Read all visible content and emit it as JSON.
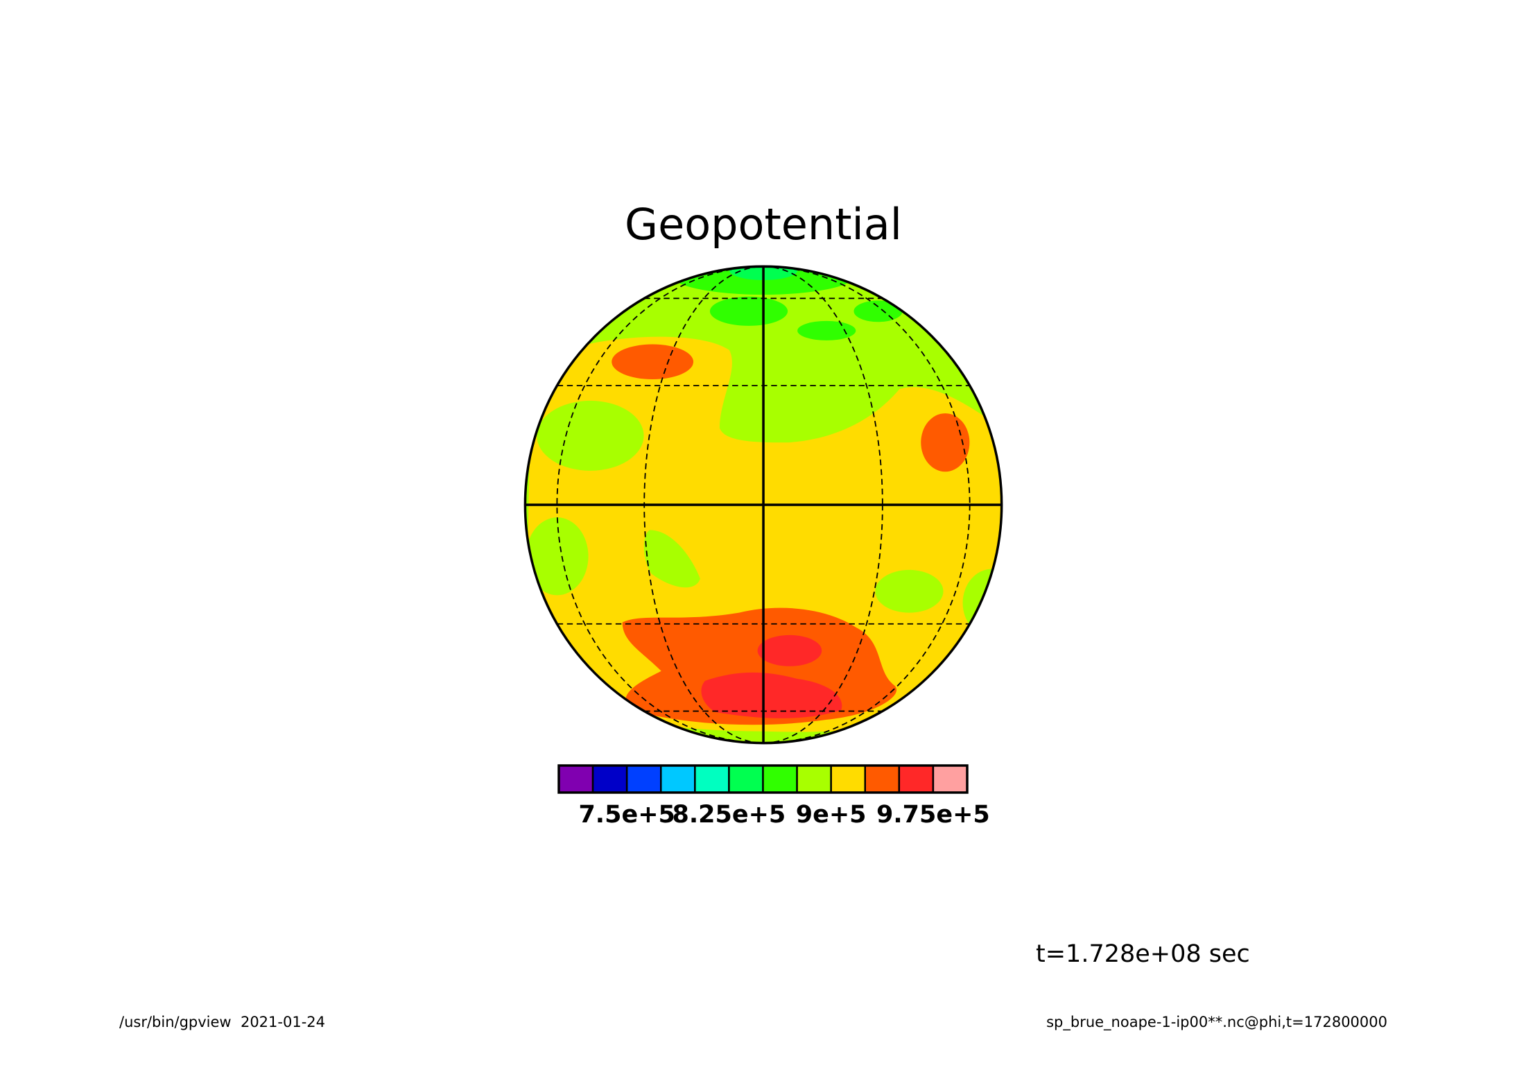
{
  "chart_data": {
    "type": "contour",
    "title": "Geopotential",
    "colors": [
      "#8000b0",
      "#0000c8",
      "#0040ff",
      "#00c8ff",
      "#00ffc0",
      "#00ff50",
      "#30ff00",
      "#a8ff00",
      "#ffdc00",
      "#ff5a00",
      "#ff2828",
      "#ffa0a0"
    ],
    "clim": [
      700000,
      1000000
    ],
    "cticks": [
      {
        "value": 750000,
        "label": "7.5e+5"
      },
      {
        "value": 825000,
        "label": "8.25e+5"
      },
      {
        "value": 900000,
        "label": "9e+5"
      },
      {
        "value": 975000,
        "label": "9.75e+5"
      }
    ],
    "time_label": "t=1.728e+08 sec",
    "footer_left": "/usr/bin/gpview  2021-01-24",
    "footer_right": "sp_brue_noape-1-ip00**.nc@phi,t=172800000"
  }
}
